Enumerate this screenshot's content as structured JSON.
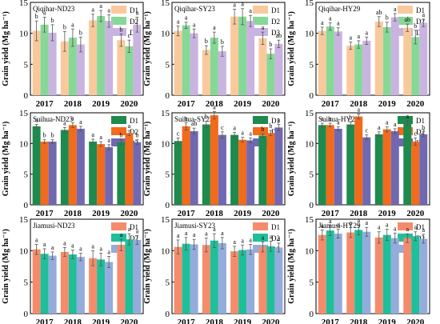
{
  "colors": {
    "row1": [
      "#f9c99c",
      "#86d896",
      "#c9b3e0"
    ],
    "row2": [
      "#1e8a4e",
      "#f26a1b",
      "#7068b0"
    ],
    "row3": [
      "#f48c6c",
      "#1fbf9a",
      "#93acdb"
    ]
  },
  "legend_labels": [
    "D1",
    "D2",
    "D3"
  ],
  "ylabel": "Grain yield (Mg ha⁻¹)",
  "chart_data": [
    {
      "type": "bar",
      "title": "Qiqihar-ND23",
      "categories": [
        "2017",
        "2018",
        "2019",
        "2020"
      ],
      "ylim": [
        0,
        15
      ],
      "yticks": [
        0,
        5,
        10,
        15
      ],
      "series": [
        {
          "name": "D1",
          "values": [
            10.4,
            8.7,
            12.1,
            8.9
          ],
          "errors": [
            1.6,
            1.6,
            1.0,
            1.0
          ],
          "letters": [
            "b",
            "b",
            "a",
            "b"
          ]
        },
        {
          "name": "D2",
          "values": [
            11.4,
            9.3,
            12.8,
            7.9
          ],
          "errors": [
            1.2,
            1.4,
            0.9,
            1.0
          ],
          "letters": [
            "a",
            "a",
            "a",
            "c"
          ]
        },
        {
          "name": "D3",
          "values": [
            10.1,
            8.2,
            12.0,
            11.4
          ],
          "errors": [
            1.3,
            1.2,
            1.0,
            1.2
          ],
          "letters": [
            "b",
            "b",
            "a",
            "a"
          ]
        }
      ]
    },
    {
      "type": "bar",
      "title": "Qiqihar-SY23",
      "categories": [
        "2017",
        "2018",
        "2019",
        "2020"
      ],
      "ylim": [
        0,
        15
      ],
      "yticks": [
        0,
        5,
        10,
        15
      ],
      "series": [
        {
          "name": "D1",
          "values": [
            10.4,
            7.3,
            12.7,
            9.2
          ],
          "errors": [
            0.8,
            0.7,
            1.2,
            1.0
          ],
          "letters": [
            "a",
            "b",
            "a",
            "a"
          ]
        },
        {
          "name": "D2",
          "values": [
            11.3,
            9.3,
            12.7,
            6.7
          ],
          "errors": [
            0.5,
            0.9,
            1.3,
            0.8
          ],
          "letters": [
            "a",
            "a",
            "a",
            "b"
          ]
        },
        {
          "name": "D3",
          "values": [
            10.0,
            7.1,
            12.0,
            8.3
          ],
          "errors": [
            0.7,
            0.8,
            0.9,
            0.6
          ],
          "letters": [
            "a",
            "b",
            "a",
            "ab"
          ]
        }
      ]
    },
    {
      "type": "bar",
      "title": "Qiqihar-HY29",
      "categories": [
        "2017",
        "2018",
        "2019",
        "2020"
      ],
      "ylim": [
        0,
        15
      ],
      "yticks": [
        0,
        5,
        10,
        15
      ],
      "series": [
        {
          "name": "D1",
          "values": [
            10.4,
            8.0,
            11.9,
            10.9
          ],
          "errors": [
            0.6,
            0.6,
            0.8,
            0.6
          ],
          "letters": [
            "a",
            "a",
            "ab",
            "ab"
          ]
        },
        {
          "name": "D2",
          "values": [
            11.1,
            8.2,
            11.0,
            9.4
          ],
          "errors": [
            0.6,
            0.6,
            0.8,
            1.1
          ],
          "letters": [
            "a",
            "a",
            "b",
            "b"
          ]
        },
        {
          "name": "D3",
          "values": [
            10.3,
            8.8,
            12.6,
            11.7
          ],
          "errors": [
            0.6,
            0.6,
            0.6,
            0.6
          ],
          "letters": [
            "a",
            "a",
            "a",
            "a"
          ]
        }
      ]
    },
    {
      "type": "bar",
      "title": "Suihua-ND23",
      "categories": [
        "2017",
        "2018",
        "2019",
        "2020"
      ],
      "ylim": [
        0,
        15
      ],
      "yticks": [
        0,
        5,
        10,
        15
      ],
      "series": [
        {
          "name": "D1",
          "values": [
            12.8,
            12.2,
            10.3,
            10.2
          ],
          "errors": [
            0.3,
            0.4,
            0.4,
            0.4
          ],
          "letters": [
            "a",
            "a",
            "a",
            "b"
          ]
        },
        {
          "name": "D2",
          "values": [
            10.3,
            13.0,
            9.9,
            11.7
          ],
          "errors": [
            0.3,
            0.4,
            0.4,
            0.4
          ],
          "letters": [
            "b",
            "a",
            "a",
            "a"
          ]
        },
        {
          "name": "D3",
          "values": [
            10.3,
            12.4,
            9.4,
            10.2
          ],
          "errors": [
            0.3,
            0.4,
            0.4,
            0.4
          ],
          "letters": [
            "b",
            "a",
            "a",
            "b"
          ]
        }
      ]
    },
    {
      "type": "bar",
      "title": "Suihua-SY23",
      "categories": [
        "2017",
        "2018",
        "2019",
        "2020"
      ],
      "ylim": [
        0,
        15
      ],
      "yticks": [
        0,
        5,
        10,
        15
      ],
      "series": [
        {
          "name": "D1",
          "values": [
            10.4,
            13.1,
            11.4,
            11.3
          ],
          "errors": [
            0.5,
            0.5,
            0.4,
            0.3
          ],
          "letters": [
            "c",
            "b",
            "a",
            "b"
          ]
        },
        {
          "name": "D2",
          "values": [
            12.8,
            14.6,
            10.6,
            11.7
          ],
          "errors": [
            0.6,
            0.6,
            0.4,
            0.4
          ],
          "letters": [
            "a",
            "a",
            "a",
            "b"
          ]
        },
        {
          "name": "D3",
          "values": [
            12.0,
            11.4,
            10.5,
            12.6
          ],
          "errors": [
            0.5,
            0.5,
            0.4,
            0.5
          ],
          "letters": [
            "ab",
            "c",
            "a",
            "a"
          ]
        }
      ]
    },
    {
      "type": "bar",
      "title": "Suihua-HY29",
      "categories": [
        "2017",
        "2018",
        "2019",
        "2020"
      ],
      "ylim": [
        0,
        15
      ],
      "yticks": [
        0,
        5,
        10,
        15
      ],
      "series": [
        {
          "name": "D1",
          "values": [
            13.0,
            13.1,
            11.5,
            13.4
          ],
          "errors": [
            0.3,
            0.4,
            0.4,
            0.3
          ],
          "letters": [
            "a",
            "b",
            "a",
            "a"
          ]
        },
        {
          "name": "D2",
          "values": [
            13.0,
            14.4,
            12.3,
            10.3
          ],
          "errors": [
            0.3,
            0.4,
            0.4,
            0.6
          ],
          "letters": [
            "a",
            "a",
            "a",
            "c"
          ]
        },
        {
          "name": "D3",
          "values": [
            12.4,
            11.0,
            12.0,
            11.5
          ],
          "errors": [
            0.3,
            0.4,
            0.4,
            0.4
          ],
          "letters": [
            "a",
            "c",
            "a",
            "b"
          ]
        }
      ]
    },
    {
      "type": "bar",
      "title": "Jiamusi-ND23",
      "categories": [
        "2017",
        "2018",
        "2019",
        "2020"
      ],
      "ylim": [
        0,
        15
      ],
      "yticks": [
        0,
        5,
        10,
        15
      ],
      "series": [
        {
          "name": "D1",
          "values": [
            10.2,
            9.8,
            8.8,
            10.9
          ],
          "errors": [
            0.8,
            0.7,
            1.2,
            0.9
          ],
          "letters": [
            "a",
            "a",
            "a",
            "a"
          ]
        },
        {
          "name": "D2",
          "values": [
            9.5,
            9.4,
            8.6,
            11.8
          ],
          "errors": [
            0.8,
            0.7,
            1.0,
            0.9
          ],
          "letters": [
            "a",
            "a",
            "a",
            "a"
          ]
        },
        {
          "name": "D3",
          "values": [
            9.2,
            9.0,
            8.2,
            11.7
          ],
          "errors": [
            0.6,
            0.6,
            0.9,
            0.7
          ],
          "letters": [
            "a",
            "a",
            "a",
            "a"
          ]
        }
      ]
    },
    {
      "type": "bar",
      "title": "Jiamusi-SY23",
      "categories": [
        "2017",
        "2018",
        "2019",
        "2020"
      ],
      "ylim": [
        0,
        15
      ],
      "yticks": [
        0,
        5,
        10,
        15
      ],
      "series": [
        {
          "name": "D1",
          "values": [
            10.6,
            10.9,
            9.9,
            10.6
          ],
          "errors": [
            1.1,
            1.1,
            0.8,
            0.8
          ],
          "letters": [
            "a",
            "a",
            "a",
            "a"
          ]
        },
        {
          "name": "D2",
          "values": [
            11.1,
            11.6,
            10.1,
            10.7
          ],
          "errors": [
            1.0,
            1.1,
            0.8,
            0.8
          ],
          "letters": [
            "a",
            "a",
            "a",
            "a"
          ]
        },
        {
          "name": "D3",
          "values": [
            11.0,
            11.2,
            10.2,
            10.5
          ],
          "errors": [
            0.8,
            0.9,
            0.8,
            0.7
          ],
          "letters": [
            "a",
            "a",
            "a",
            "a"
          ]
        }
      ]
    },
    {
      "type": "bar",
      "title": "Jiamusi-HY29",
      "categories": [
        "2017",
        "2018",
        "2019",
        "2020"
      ],
      "ylim": [
        0,
        15
      ],
      "yticks": [
        0,
        5,
        10,
        15
      ],
      "series": [
        {
          "name": "D1",
          "values": [
            12.5,
            12.9,
            12.1,
            12.0
          ],
          "errors": [
            0.8,
            0.8,
            0.9,
            0.7
          ],
          "letters": [
            "a",
            "a",
            "a",
            "a"
          ]
        },
        {
          "name": "D2",
          "values": [
            13.2,
            13.3,
            12.5,
            12.3
          ],
          "errors": [
            0.8,
            0.8,
            0.9,
            0.7
          ],
          "letters": [
            "a",
            "a",
            "a",
            "a"
          ]
        },
        {
          "name": "D3",
          "values": [
            12.7,
            13.0,
            12.0,
            11.9
          ],
          "errors": [
            0.7,
            0.7,
            0.8,
            0.7
          ],
          "letters": [
            "a",
            "a",
            "a",
            "a"
          ]
        }
      ]
    }
  ]
}
